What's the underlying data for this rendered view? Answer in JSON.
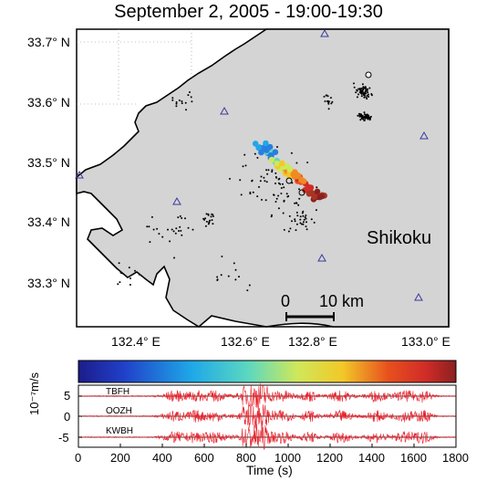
{
  "title": "September 2, 2005 - 19:00-19:30",
  "map": {
    "lat_labels": [
      "33.7° N",
      "33.6° N",
      "33.5° N",
      "33.4° N",
      "33.3° N"
    ],
    "lon_labels": [
      "132.4° E",
      "132.6° E",
      "132.8° E",
      "133.0° E"
    ],
    "region_label": "Shikoku",
    "scale_left": "0",
    "scale_right": "10 km",
    "land_color": "#d4d4d4",
    "sea_color": "#ffffff",
    "station_color": "#3a3aa0"
  },
  "waveforms": {
    "stations": [
      "TBFH",
      "OOZH",
      "KWBH"
    ],
    "ylabel": "10⁻⁷m/s",
    "yticks": [
      "5",
      "0",
      "-5"
    ],
    "xlabel": "Time (s)",
    "xticks": [
      "0",
      "200",
      "400",
      "600",
      "800",
      "1000",
      "1200",
      "1400",
      "1600",
      "1800"
    ],
    "xlim": [
      0,
      1800
    ],
    "ylim": [
      -6,
      6
    ],
    "colorbar": "jet",
    "trace_color": "#e8202a"
  }
}
